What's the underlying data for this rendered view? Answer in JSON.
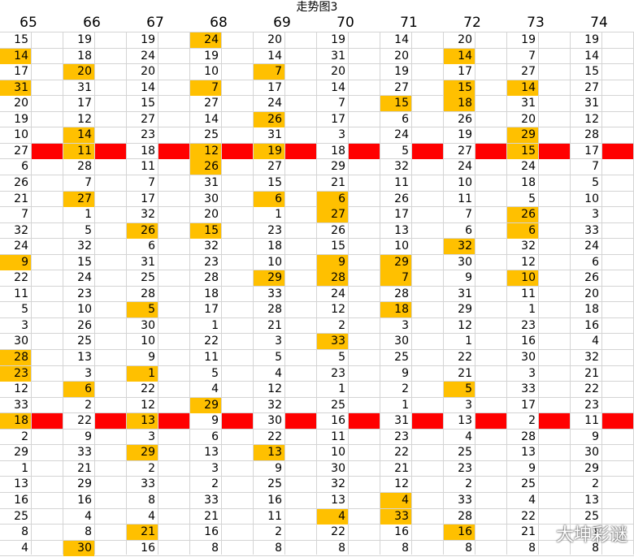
{
  "title": "走势图3",
  "watermark": "大坤彩谜",
  "colors": {
    "highlight": "#ffc000",
    "marker_row": "#ff0000",
    "grid": "#d4d4d4"
  },
  "columns": [
    "65",
    "66",
    "67",
    "68",
    "69",
    "70",
    "71",
    "72",
    "73",
    "74"
  ],
  "rows": [
    [
      "15",
      "19",
      "19",
      "24",
      "20",
      "19",
      "14",
      "20",
      "19",
      "19"
    ],
    [
      "14",
      "18",
      "24",
      "19",
      "14",
      "31",
      "20",
      "14",
      "7",
      "14"
    ],
    [
      "17",
      "20",
      "20",
      "10",
      "7",
      "20",
      "19",
      "17",
      "27",
      "15"
    ],
    [
      "31",
      "31",
      "14",
      "7",
      "17",
      "14",
      "27",
      "15",
      "14",
      "27"
    ],
    [
      "20",
      "17",
      "15",
      "27",
      "24",
      "7",
      "15",
      "18",
      "31",
      "31"
    ],
    [
      "19",
      "12",
      "27",
      "14",
      "26",
      "17",
      "6",
      "26",
      "20",
      "12"
    ],
    [
      "10",
      "14",
      "23",
      "25",
      "31",
      "3",
      "24",
      "19",
      "29",
      "28"
    ],
    [
      "27",
      "11",
      "18",
      "12",
      "19",
      "18",
      "5",
      "27",
      "15",
      "17"
    ],
    [
      "6",
      "28",
      "11",
      "26",
      "27",
      "29",
      "32",
      "24",
      "24",
      "7"
    ],
    [
      "26",
      "7",
      "7",
      "31",
      "15",
      "21",
      "11",
      "10",
      "18",
      "5"
    ],
    [
      "21",
      "27",
      "17",
      "30",
      "6",
      "6",
      "26",
      "11",
      "5",
      "10"
    ],
    [
      "7",
      "1",
      "32",
      "20",
      "1",
      "27",
      "17",
      "7",
      "26",
      "3"
    ],
    [
      "32",
      "5",
      "26",
      "15",
      "23",
      "26",
      "13",
      "6",
      "6",
      "33"
    ],
    [
      "24",
      "32",
      "6",
      "32",
      "18",
      "15",
      "10",
      "32",
      "32",
      "24"
    ],
    [
      "9",
      "15",
      "31",
      "23",
      "10",
      "9",
      "29",
      "30",
      "12",
      "6"
    ],
    [
      "22",
      "24",
      "25",
      "28",
      "29",
      "28",
      "7",
      "9",
      "10",
      "26"
    ],
    [
      "11",
      "23",
      "28",
      "18",
      "33",
      "24",
      "28",
      "31",
      "11",
      "20"
    ],
    [
      "5",
      "10",
      "5",
      "17",
      "28",
      "12",
      "18",
      "29",
      "1",
      "18"
    ],
    [
      "3",
      "26",
      "30",
      "1",
      "21",
      "2",
      "3",
      "12",
      "23",
      "16"
    ],
    [
      "30",
      "25",
      "10",
      "22",
      "3",
      "33",
      "30",
      "1",
      "16",
      "4"
    ],
    [
      "28",
      "13",
      "9",
      "11",
      "5",
      "5",
      "25",
      "22",
      "30",
      "32"
    ],
    [
      "23",
      "3",
      "1",
      "5",
      "4",
      "23",
      "9",
      "21",
      "3",
      "21"
    ],
    [
      "12",
      "6",
      "22",
      "4",
      "12",
      "1",
      "2",
      "5",
      "33",
      "22"
    ],
    [
      "33",
      "2",
      "12",
      "29",
      "32",
      "25",
      "1",
      "3",
      "17",
      "23"
    ],
    [
      "18",
      "22",
      "13",
      "9",
      "30",
      "16",
      "31",
      "13",
      "2",
      "11"
    ],
    [
      "2",
      "9",
      "3",
      "6",
      "22",
      "11",
      "23",
      "4",
      "28",
      "9"
    ],
    [
      "29",
      "33",
      "29",
      "13",
      "13",
      "10",
      "22",
      "25",
      "13",
      "30"
    ],
    [
      "1",
      "21",
      "2",
      "3",
      "9",
      "30",
      "21",
      "23",
      "9",
      "29"
    ],
    [
      "13",
      "29",
      "33",
      "2",
      "25",
      "32",
      "12",
      "2",
      "25",
      "2"
    ],
    [
      "16",
      "16",
      "8",
      "33",
      "16",
      "13",
      "4",
      "33",
      "4",
      "13"
    ],
    [
      "25",
      "4",
      "4",
      "21",
      "11",
      "4",
      "33",
      "28",
      "22",
      "25"
    ],
    [
      "8",
      "8",
      "21",
      "16",
      "2",
      "22",
      "16",
      "16",
      "21",
      "1"
    ],
    [
      "4",
      "30",
      "16",
      "8",
      "8",
      "8",
      "8",
      "8",
      "8",
      "8"
    ]
  ],
  "highlights": [
    [
      0,
      3
    ],
    [
      1,
      0
    ],
    [
      1,
      7
    ],
    [
      2,
      1
    ],
    [
      2,
      4
    ],
    [
      3,
      0
    ],
    [
      3,
      3
    ],
    [
      3,
      7
    ],
    [
      3,
      8
    ],
    [
      4,
      6
    ],
    [
      4,
      7
    ],
    [
      5,
      4
    ],
    [
      6,
      1
    ],
    [
      6,
      8
    ],
    [
      7,
      1
    ],
    [
      7,
      3
    ],
    [
      7,
      4
    ],
    [
      7,
      8
    ],
    [
      8,
      3
    ],
    [
      10,
      1
    ],
    [
      10,
      4
    ],
    [
      10,
      5
    ],
    [
      11,
      5
    ],
    [
      11,
      8
    ],
    [
      12,
      2
    ],
    [
      12,
      3
    ],
    [
      12,
      8
    ],
    [
      13,
      7
    ],
    [
      14,
      0
    ],
    [
      14,
      5
    ],
    [
      14,
      6
    ],
    [
      15,
      4
    ],
    [
      15,
      5
    ],
    [
      15,
      6
    ],
    [
      15,
      8
    ],
    [
      17,
      2
    ],
    [
      17,
      6
    ],
    [
      19,
      5
    ],
    [
      20,
      0
    ],
    [
      21,
      0
    ],
    [
      21,
      2
    ],
    [
      22,
      1
    ],
    [
      22,
      7
    ],
    [
      23,
      3
    ],
    [
      24,
      0
    ],
    [
      24,
      2
    ],
    [
      26,
      2
    ],
    [
      26,
      4
    ],
    [
      29,
      6
    ],
    [
      30,
      5
    ],
    [
      30,
      6
    ],
    [
      31,
      2
    ],
    [
      31,
      7
    ],
    [
      32,
      1
    ]
  ],
  "marker_rows": [
    7,
    24
  ]
}
